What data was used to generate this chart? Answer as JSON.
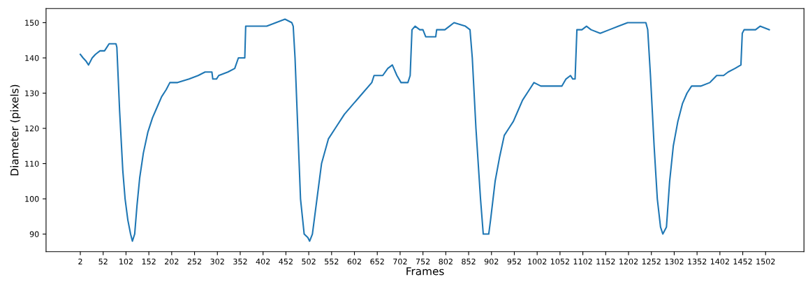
{
  "chart_data": {
    "type": "line",
    "xlabel": "Frames",
    "ylabel": "Diameter (pixels)",
    "series": [
      {
        "color": "#1f77b4",
        "x": [
          2,
          8,
          15,
          20,
          28,
          35,
          45,
          55,
          60,
          65,
          80,
          82,
          88,
          95,
          100,
          106,
          112,
          116,
          121,
          126,
          132,
          140,
          150,
          160,
          170,
          180,
          190,
          198,
          215,
          240,
          260,
          275,
          290,
          292,
          300,
          305,
          325,
          340,
          348,
          362,
          364,
          390,
          410,
          430,
          450,
          465,
          468,
          472,
          478,
          484,
          488,
          492,
          500,
          504,
          510,
          520,
          530,
          545,
          560,
          580,
          600,
          620,
          640,
          645,
          664,
          675,
          685,
          695,
          704,
          719,
          724,
          728,
          735,
          745,
          752,
          758,
          780,
          782,
          800,
          810,
          820,
          845,
          855,
          860,
          868,
          878,
          884,
          896,
          900,
          910,
          920,
          930,
          940,
          950,
          960,
          970,
          985,
          995,
          1010,
          1056,
          1065,
          1075,
          1080,
          1085,
          1089,
          1100,
          1110,
          1120,
          1140,
          1160,
          1180,
          1200,
          1240,
          1244,
          1250,
          1258,
          1265,
          1272,
          1277,
          1285,
          1292,
          1300,
          1310,
          1320,
          1330,
          1340,
          1360,
          1380,
          1395,
          1410,
          1420,
          1435,
          1448,
          1451,
          1455,
          1470,
          1480,
          1490,
          1510
        ],
        "values": [
          141,
          140,
          139,
          138,
          140,
          141,
          142,
          142,
          143,
          144,
          144,
          143,
          125,
          108,
          100,
          94,
          90,
          88,
          90,
          98,
          106,
          113,
          119,
          123,
          126,
          129,
          131,
          133,
          133,
          134,
          135,
          136,
          136,
          134,
          134,
          135,
          136,
          137,
          140,
          140,
          149,
          149,
          149,
          150,
          151,
          150,
          149,
          140,
          120,
          100,
          95,
          90,
          89,
          88,
          90,
          100,
          110,
          117,
          120,
          124,
          127,
          130,
          133,
          135,
          135,
          137,
          138,
          135,
          133,
          133,
          135,
          148,
          149,
          148,
          148,
          146,
          146,
          148,
          148,
          149,
          150,
          149,
          148,
          140,
          120,
          100,
          90,
          90,
          94,
          105,
          112,
          118,
          120,
          122,
          125,
          128,
          131,
          133,
          132,
          132,
          134,
          135,
          134,
          134,
          148,
          148,
          149,
          148,
          147,
          148,
          149,
          150,
          150,
          148,
          135,
          115,
          100,
          92,
          90,
          92,
          105,
          115,
          122,
          127,
          130,
          132,
          132,
          133,
          135,
          135,
          136,
          137,
          138,
          147,
          148,
          148,
          148,
          149,
          148
        ]
      }
    ],
    "xlim": [
      -73,
      1586
    ],
    "ylim": [
      85,
      154
    ],
    "xticks": [
      2,
      52,
      102,
      152,
      202,
      252,
      302,
      352,
      402,
      452,
      502,
      552,
      602,
      652,
      702,
      752,
      802,
      852,
      902,
      952,
      1002,
      1052,
      1102,
      1152,
      1202,
      1252,
      1302,
      1352,
      1402,
      1452,
      1502
    ],
    "yticks": [
      90,
      100,
      110,
      120,
      130,
      140,
      150
    ]
  }
}
